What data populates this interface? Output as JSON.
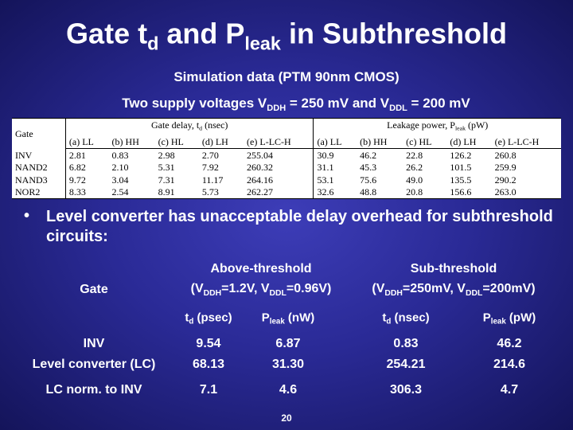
{
  "title": [
    "Gate t",
    "d",
    " and P",
    "leak",
    " in Subthreshold"
  ],
  "subtitle": "Simulation data (PTM 90nm CMOS)",
  "supply_note": [
    "Two supply voltages V",
    "DDH",
    " = 250 mV and V",
    "DDL",
    " = 200 mV"
  ],
  "table1": {
    "gate_header": "Gate",
    "delay_header": [
      "Gate delay, t",
      "d",
      " (nsec)"
    ],
    "leak_header": [
      "Leakage power, P",
      "leak",
      " (pW)"
    ],
    "delay_columns": [
      "(a) LL",
      "(b) HH",
      "(c) HL",
      "(d) LH",
      "(e) L-LC-H"
    ],
    "leak_columns": [
      "(a) LL",
      "(b) HH",
      "(c) HL",
      "(d) LH",
      "(e) L-LC-H"
    ],
    "rows": [
      [
        "INV",
        "2.81",
        "0.83",
        "2.98",
        "2.70",
        "255.04",
        "30.9",
        "46.2",
        "22.8",
        "126.2",
        "260.8"
      ],
      [
        "NAND2",
        "6.82",
        "2.10",
        "5.31",
        "7.92",
        "260.32",
        "31.1",
        "45.3",
        "26.2",
        "101.5",
        "259.9"
      ],
      [
        "NAND3",
        "9.72",
        "3.04",
        "7.31",
        "11.17",
        "264.16",
        "53.1",
        "75.6",
        "49.0",
        "135.5",
        "290.2"
      ],
      [
        "NOR2",
        "8.33",
        "2.54",
        "8.91",
        "5.73",
        "262.27",
        "32.6",
        "48.8",
        "20.8",
        "156.6",
        "263.0"
      ]
    ]
  },
  "bullet": "Level converter has unacceptable delay overhead for subthreshold circuits:",
  "table2": {
    "gate_header": "Gate",
    "above_header": "Above-threshold",
    "above_cond": [
      "(V",
      "DDH",
      "=1.2V, V",
      "DDL",
      "=0.96V)"
    ],
    "sub_header": "Sub-threshold",
    "sub_cond": [
      "(V",
      "DDH",
      "=250mV, V",
      "DDL",
      "=200mV)"
    ],
    "columns": [
      [
        "t",
        "d",
        " (psec)"
      ],
      [
        "P",
        "leak",
        " (nW)"
      ],
      [
        "t",
        "d",
        " (nsec)"
      ],
      [
        "P",
        "leak",
        " (pW)"
      ]
    ],
    "rows": [
      [
        "INV",
        "9.54",
        "6.87",
        "0.83",
        "46.2"
      ],
      [
        "Level converter (LC)",
        "68.13",
        "31.30",
        "254.21",
        "214.6"
      ],
      [
        "LC norm. to INV",
        "7.1",
        "4.6",
        "306.3",
        "4.7"
      ]
    ]
  },
  "page_number": "20"
}
